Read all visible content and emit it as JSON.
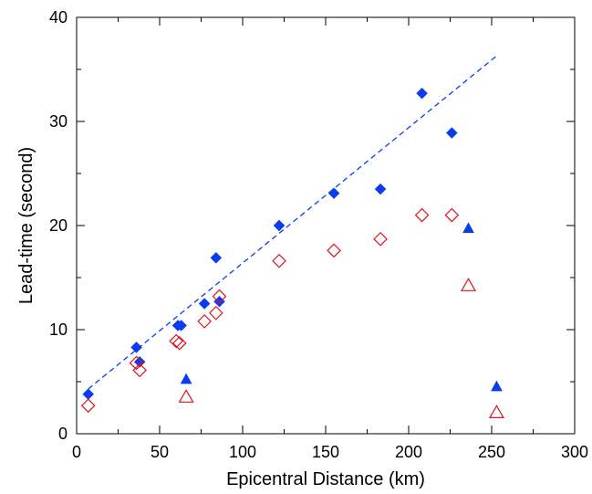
{
  "chart_data": {
    "type": "scatter",
    "xlabel": "Epicentral Distance (km)",
    "ylabel": "Lead-time (second)",
    "xlim": [
      0,
      300
    ],
    "ylim": [
      0,
      40
    ],
    "xticks": [
      0,
      50,
      100,
      150,
      200,
      250,
      300
    ],
    "yticks": [
      0,
      10,
      20,
      30,
      40
    ],
    "xticks_minor": [
      25,
      75,
      125,
      175,
      225,
      275
    ],
    "yticks_minor": [
      5,
      15,
      25,
      35
    ],
    "grid": false,
    "legend": "none",
    "series": [
      {
        "marker": "diamond-filled",
        "color": "#0a3cf0",
        "x": [
          7,
          36,
          38,
          61,
          63,
          77,
          84,
          86,
          122,
          155,
          183,
          208,
          226
        ],
        "y": [
          3.8,
          8.3,
          6.9,
          10.4,
          10.4,
          12.5,
          16.9,
          12.7,
          20.0,
          23.1,
          23.5,
          32.7,
          28.9
        ]
      },
      {
        "marker": "triangle-filled",
        "color": "#0a3cf0",
        "x": [
          66,
          236,
          253
        ],
        "y": [
          5.2,
          19.7,
          4.5
        ]
      },
      {
        "marker": "diamond-open",
        "color": "#e0141e",
        "x": [
          7,
          36,
          38,
          60,
          62,
          77,
          84,
          86,
          122,
          155,
          183,
          208,
          226
        ],
        "y": [
          2.7,
          6.8,
          6.1,
          8.9,
          8.7,
          10.8,
          11.6,
          13.2,
          16.6,
          17.6,
          18.7,
          21.0,
          21.0
        ]
      },
      {
        "marker": "triangle-open",
        "color": "#e0141e",
        "x": [
          66,
          236,
          253
        ],
        "y": [
          3.5,
          14.2,
          2.0
        ]
      }
    ],
    "fit_line": {
      "style": "dashed",
      "color": "#0a3cf0",
      "x": [
        7,
        253
      ],
      "y": [
        4.3,
        36.3
      ]
    }
  }
}
